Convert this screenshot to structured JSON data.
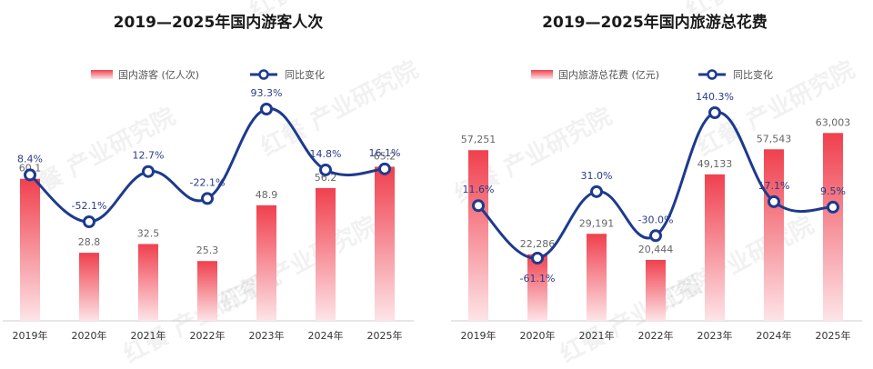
{
  "colors": {
    "bar_top": "#f0404e",
    "bar_bottom": "#fde4e7",
    "line": "#1d3a8f",
    "axis": "#cccccc",
    "line_label": "#2a3a8a",
    "bar_label": "#666666"
  },
  "watermark": "红餐 产业研究院",
  "chart_data": [
    {
      "type": "bar",
      "title": "2019—2025年国内游客人次",
      "categories": [
        "2019年",
        "2020年",
        "2021年",
        "2022年",
        "2023年",
        "2024年",
        "2025年"
      ],
      "bar_series": {
        "name": "国内游客 (亿人次)",
        "values": [
          60.1,
          28.8,
          32.5,
          25.3,
          48.9,
          56.2,
          65.2
        ],
        "labels": [
          "60.1",
          "28.8",
          "32.5",
          "25.3",
          "48.9",
          "56.2",
          "65.2"
        ]
      },
      "line_series": {
        "name": "同比变化",
        "values": [
          8.4,
          -52.1,
          12.7,
          -22.1,
          93.3,
          14.8,
          16.1
        ],
        "labels": [
          "8.4%",
          "-52.1%",
          "12.7%",
          "-22.1%",
          "93.3%",
          "14.8%",
          "16.1%"
        ]
      },
      "legend": "top-center"
    },
    {
      "type": "bar",
      "title": "2019—2025年国内旅游总花费",
      "categories": [
        "2019年",
        "2020年",
        "2021年",
        "2022年",
        "2023年",
        "2024年",
        "2025年"
      ],
      "bar_series": {
        "name": "国内旅游总花费 (亿元)",
        "values": [
          57251,
          22286,
          29191,
          20444,
          49133,
          57543,
          63003
        ],
        "labels": [
          "57,251",
          "22,286",
          "29,191",
          "20,444",
          "49,133",
          "57,543",
          "63,003"
        ]
      },
      "line_series": {
        "name": "同比变化",
        "values": [
          11.6,
          -61.1,
          31.0,
          -30.0,
          140.3,
          17.1,
          9.5
        ],
        "labels": [
          "11.6%",
          "-61.1%",
          "31.0%",
          "-30.0%",
          "140.3%",
          "17.1%",
          "9.5%"
        ]
      },
      "legend": "top-center"
    }
  ]
}
